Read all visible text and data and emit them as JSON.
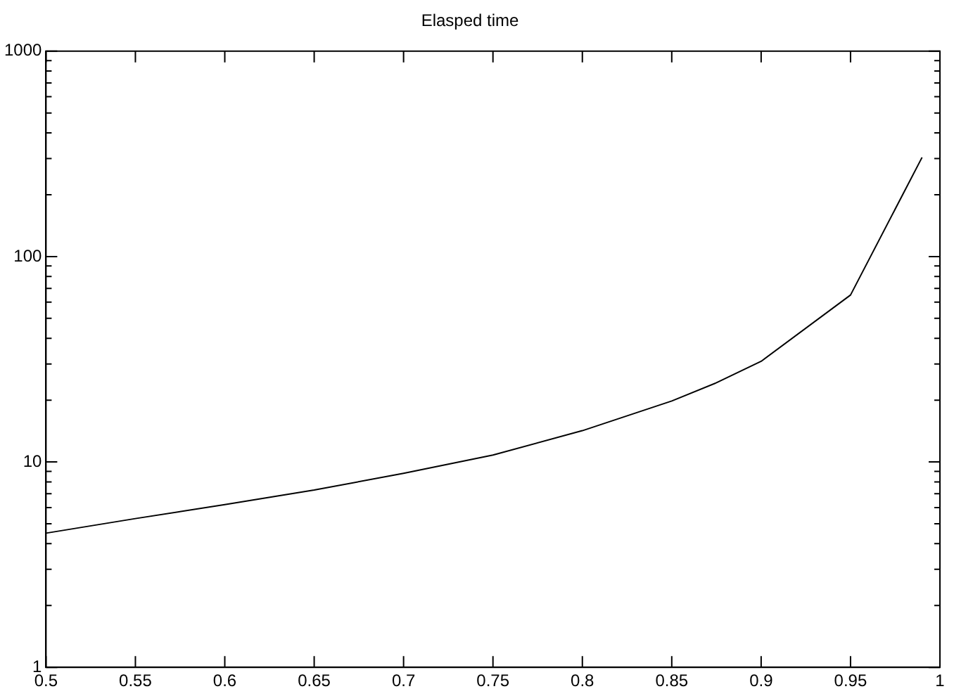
{
  "chart_data": {
    "type": "line",
    "title": "Elasped time",
    "x": [
      0.5,
      0.55,
      0.6,
      0.65,
      0.7,
      0.75,
      0.8,
      0.85,
      0.875,
      0.9,
      0.95,
      0.99
    ],
    "series": [
      {
        "color": "#000000",
        "values": [
          4.5,
          5.3,
          6.2,
          7.3,
          8.8,
          10.8,
          14.2,
          19.8,
          24.3,
          30.9,
          65,
          304
        ]
      }
    ],
    "log": "y",
    "grid": false,
    "legend": false,
    "marker": "none",
    "line_style": "solid",
    "xlim": [
      0.5,
      1
    ],
    "xticks": [
      0.5,
      0.55,
      0.6,
      0.65,
      0.7,
      0.75,
      0.8,
      0.85,
      0.9,
      0.95,
      1
    ],
    "ylim": [
      1,
      1000
    ],
    "yticks": [
      1,
      {
        "value": 2,
        "label": null
      },
      {
        "value": 3,
        "label": null
      },
      {
        "value": 4,
        "label": null
      },
      {
        "value": 5,
        "label": null
      },
      {
        "value": 6,
        "label": null
      },
      {
        "value": 7,
        "label": null
      },
      {
        "value": 8,
        "label": null
      },
      {
        "value": 9,
        "label": null
      },
      10,
      {
        "value": 20,
        "label": null
      },
      {
        "value": 30,
        "label": null
      },
      {
        "value": 40,
        "label": null
      },
      {
        "value": 50,
        "label": null
      },
      {
        "value": 60,
        "label": null
      },
      {
        "value": 70,
        "label": null
      },
      {
        "value": 80,
        "label": null
      },
      {
        "value": 90,
        "label": null
      },
      100,
      {
        "value": 200,
        "label": null
      },
      {
        "value": 300,
        "label": null
      },
      {
        "value": 400,
        "label": null
      },
      {
        "value": 500,
        "label": null
      },
      {
        "value": 600,
        "label": null
      },
      {
        "value": 700,
        "label": null
      },
      {
        "value": 800,
        "label": null
      },
      {
        "value": 900,
        "label": null
      },
      1000
    ]
  }
}
